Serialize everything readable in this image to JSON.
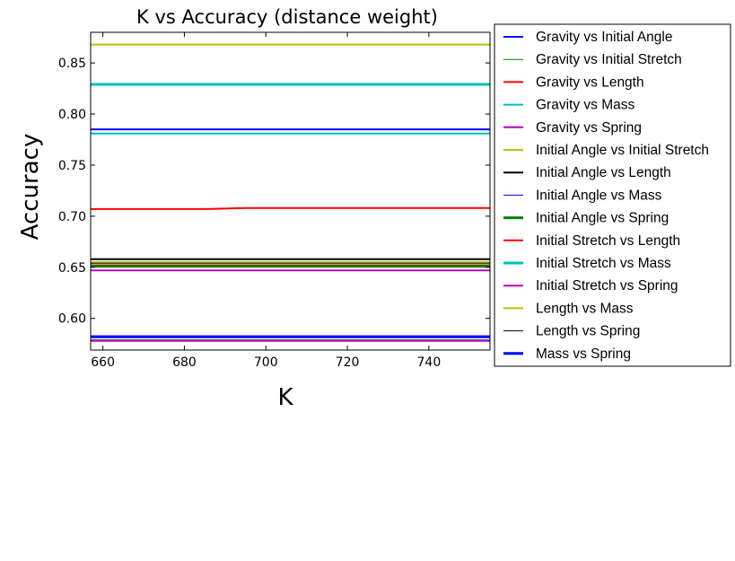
{
  "chart_data": {
    "type": "line",
    "title": "K vs Accuracy (distance weight)",
    "xlabel": "K",
    "ylabel": "Accuracy",
    "xlim": [
      657,
      755
    ],
    "ylim": [
      0.569,
      0.88
    ],
    "xticks": [
      660,
      680,
      700,
      720,
      740
    ],
    "xtick_labels": [
      "660",
      "680",
      "700",
      "720",
      "740"
    ],
    "yticks": [
      0.6,
      0.65,
      0.7,
      0.75,
      0.8,
      0.85
    ],
    "ytick_labels": [
      "0.60",
      "0.65",
      "0.70",
      "0.75",
      "0.80",
      "0.85"
    ],
    "grid": false,
    "legend_position": "outside-right",
    "x": [
      657,
      665,
      675,
      685,
      695,
      705,
      715,
      725,
      735,
      745,
      755
    ],
    "series": [
      {
        "name": "Gravity vs Initial Angle",
        "color": "#0000ff",
        "width": 2,
        "values": [
          0.785,
          0.785,
          0.785,
          0.785,
          0.785,
          0.785,
          0.785,
          0.785,
          0.785,
          0.785,
          0.785
        ]
      },
      {
        "name": "Gravity vs Initial Stretch",
        "color": "#008000",
        "width": 1,
        "values": [
          0.579,
          0.579,
          0.579,
          0.579,
          0.579,
          0.579,
          0.579,
          0.579,
          0.579,
          0.579,
          0.579
        ]
      },
      {
        "name": "Gravity vs Length",
        "color": "#ff0000",
        "width": 2,
        "values": [
          0.652,
          0.652,
          0.652,
          0.652,
          0.652,
          0.652,
          0.652,
          0.652,
          0.652,
          0.652,
          0.652
        ]
      },
      {
        "name": "Gravity vs Mass",
        "color": "#00bfbf",
        "width": 2,
        "values": [
          0.781,
          0.781,
          0.781,
          0.781,
          0.781,
          0.781,
          0.781,
          0.781,
          0.781,
          0.781,
          0.781
        ]
      },
      {
        "name": "Gravity vs Spring",
        "color": "#bf00bf",
        "width": 2,
        "values": [
          0.578,
          0.578,
          0.578,
          0.578,
          0.578,
          0.578,
          0.578,
          0.578,
          0.578,
          0.578,
          0.578
        ]
      },
      {
        "name": "Initial Angle vs Initial Stretch",
        "color": "#bfbf00",
        "width": 2,
        "values": [
          0.655,
          0.655,
          0.655,
          0.655,
          0.655,
          0.655,
          0.655,
          0.655,
          0.655,
          0.655,
          0.655
        ]
      },
      {
        "name": "Initial Angle vs Length",
        "color": "#000000",
        "width": 2,
        "values": [
          0.658,
          0.658,
          0.658,
          0.658,
          0.658,
          0.658,
          0.658,
          0.658,
          0.658,
          0.658,
          0.658
        ]
      },
      {
        "name": "Initial Angle vs Mass",
        "color": "#0000ff",
        "width": 1,
        "values": [
          0.583,
          0.583,
          0.583,
          0.583,
          0.583,
          0.583,
          0.583,
          0.583,
          0.583,
          0.583,
          0.583
        ]
      },
      {
        "name": "Initial Angle vs Spring",
        "color": "#008000",
        "width": 3,
        "values": [
          0.651,
          0.651,
          0.651,
          0.651,
          0.651,
          0.651,
          0.651,
          0.651,
          0.651,
          0.651,
          0.651
        ]
      },
      {
        "name": "Initial Stretch vs Length",
        "color": "#ff0000",
        "width": 2,
        "values": [
          0.707,
          0.707,
          0.707,
          0.707,
          0.708,
          0.708,
          0.708,
          0.708,
          0.708,
          0.708,
          0.708
        ]
      },
      {
        "name": "Initial Stretch vs Mass",
        "color": "#00bfbf",
        "width": 3,
        "values": [
          0.829,
          0.829,
          0.829,
          0.829,
          0.829,
          0.829,
          0.829,
          0.829,
          0.829,
          0.829,
          0.829
        ]
      },
      {
        "name": "Initial Stretch vs Spring",
        "color": "#bf00bf",
        "width": 2,
        "values": [
          0.647,
          0.647,
          0.647,
          0.647,
          0.647,
          0.647,
          0.647,
          0.647,
          0.647,
          0.647,
          0.647
        ]
      },
      {
        "name": "Length vs Mass",
        "color": "#bfbf00",
        "width": 2,
        "values": [
          0.868,
          0.868,
          0.868,
          0.868,
          0.868,
          0.868,
          0.868,
          0.868,
          0.868,
          0.868,
          0.868
        ]
      },
      {
        "name": "Length vs Spring",
        "color": "#000000",
        "width": 1,
        "values": [
          0.654,
          0.654,
          0.654,
          0.654,
          0.654,
          0.654,
          0.654,
          0.654,
          0.654,
          0.654,
          0.654
        ]
      },
      {
        "name": "Mass vs Spring",
        "color": "#0000ff",
        "width": 3,
        "values": [
          0.582,
          0.582,
          0.582,
          0.582,
          0.582,
          0.582,
          0.582,
          0.582,
          0.582,
          0.582,
          0.582
        ]
      }
    ]
  }
}
